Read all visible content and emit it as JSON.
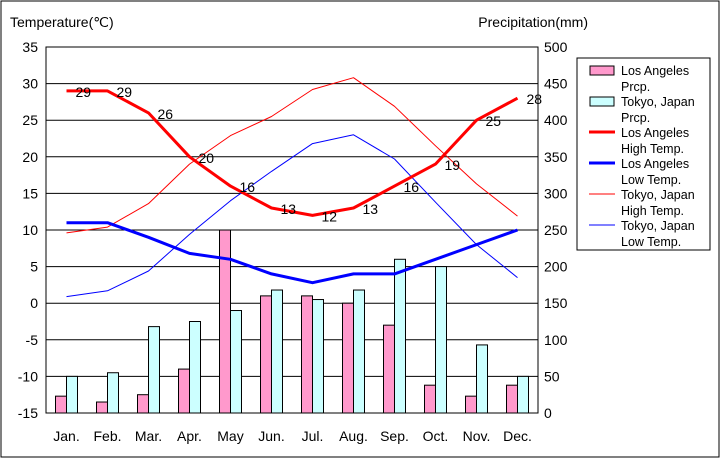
{
  "chart_data": {
    "type": "bar+line",
    "left_axis_title": "Temperature(℃)",
    "right_axis_title": "Precipitation(mm)",
    "categories": [
      "Jan.",
      "Feb.",
      "Mar.",
      "Apr.",
      "May",
      "Jun.",
      "Jul.",
      "Aug.",
      "Sep.",
      "Oct.",
      "Nov.",
      "Dec."
    ],
    "ylim_temp": [
      -15,
      35
    ],
    "ylim_precip": [
      0,
      500
    ],
    "y_ticks_temp": [
      35,
      30,
      25,
      20,
      15,
      10,
      5,
      0,
      -5,
      -10,
      -15
    ],
    "y_ticks_precip": [
      500,
      450,
      400,
      350,
      300,
      250,
      200,
      150,
      100,
      50,
      0
    ],
    "grid": true,
    "legend_position": "right",
    "bars": [
      {
        "name": "Los Angeles Prcp.",
        "name_lines": [
          "Los Angeles",
          "Prcp."
        ],
        "color": "#ff99cc",
        "values": [
          23,
          15,
          25,
          60,
          250,
          160,
          160,
          150,
          120,
          38,
          23,
          38
        ]
      },
      {
        "name": "Tokyo, Japan Prcp.",
        "name_lines": [
          "Tokyo, Japan",
          "Prcp."
        ],
        "color": "#ccffff",
        "values": [
          50,
          55,
          118,
          125,
          140,
          168,
          155,
          168,
          210,
          200,
          93,
          50
        ]
      }
    ],
    "lines": [
      {
        "name": "Los Angeles High Temp.",
        "name_lines": [
          "Los Angeles",
          "High Temp."
        ],
        "color": "#ff0000",
        "width": 3,
        "values": [
          29,
          29,
          26,
          20,
          16,
          13,
          12,
          13,
          16,
          19,
          25,
          28
        ],
        "labels": [
          "29",
          "29",
          "26",
          "20",
          "16",
          "13",
          "12",
          "13",
          "16",
          "19",
          "25",
          "28"
        ]
      },
      {
        "name": "Los Angeles Low Temp.",
        "name_lines": [
          "Los Angeles",
          "Low Temp."
        ],
        "color": "#0000ff",
        "width": 3,
        "values": [
          11,
          11,
          9,
          6.8,
          6,
          4,
          2.8,
          4,
          4,
          6,
          8,
          10
        ]
      },
      {
        "name": "Tokyo, Japan High Temp.",
        "name_lines": [
          "Tokyo, Japan",
          "High Temp."
        ],
        "color": "#ff0000",
        "width": 1,
        "values": [
          9.6,
          10.4,
          13.6,
          19,
          22.9,
          25.5,
          29.2,
          30.8,
          26.9,
          21.5,
          16.3,
          11.9
        ]
      },
      {
        "name": "Tokyo, Japan Low Temp.",
        "name_lines": [
          "Tokyo, Japan",
          "Low Temp."
        ],
        "color": "#0000ff",
        "width": 1,
        "values": [
          0.9,
          1.7,
          4.4,
          9.4,
          14,
          18,
          21.8,
          23,
          19.7,
          13.8,
          8,
          3.5
        ]
      }
    ]
  }
}
